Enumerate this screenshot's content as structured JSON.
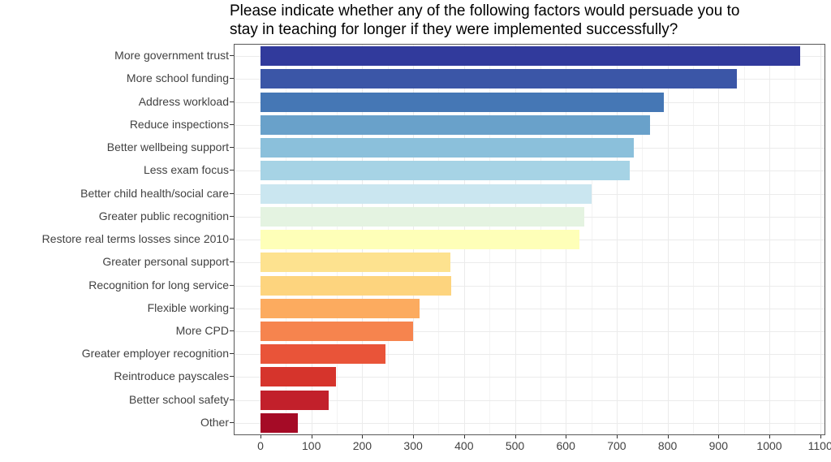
{
  "chart_data": {
    "type": "bar",
    "orientation": "horizontal",
    "title_lines": [
      "Please indicate whether any of the following factors would persuade you to",
      "stay in teaching for longer if they were implemented successfully?"
    ],
    "categories": [
      "More government trust",
      "More school funding",
      "Address workload",
      "Reduce inspections",
      "Better wellbeing support",
      "Less exam focus",
      "Better child health/social care",
      "Greater public recognition",
      "Restore real terms losses since 2010",
      "Greater personal support",
      "Recognition for long service",
      "Flexible working",
      "More CPD",
      "Greater employer recognition",
      "Reintroduce payscales",
      "Better school safety",
      "Other"
    ],
    "values": [
      1061,
      936,
      792,
      765,
      733,
      726,
      651,
      636,
      626,
      373,
      375,
      313,
      299,
      246,
      149,
      134,
      74
    ],
    "bar_colors": [
      "#313a9c",
      "#3b56a7",
      "#4577b5",
      "#69a1ca",
      "#8bc0db",
      "#a6d3e5",
      "#cae6f0",
      "#e4f3e1",
      "#feffb8",
      "#fde28f",
      "#fdd47e",
      "#fcab5f",
      "#f6844e",
      "#e95439",
      "#d6342c",
      "#c2202b",
      "#a50b26"
    ],
    "xlabel": "",
    "ylabel": "",
    "xlim": [
      0,
      1100
    ],
    "x_ticks": [
      0,
      100,
      200,
      300,
      400,
      500,
      600,
      700,
      800,
      900,
      1000,
      1100
    ],
    "x_minor_step": 50,
    "grid": true,
    "legend": false
  },
  "colors": {
    "panel_border": "#595959",
    "grid_major": "#ebebeb",
    "grid_minor": "#f3f3f3",
    "axis_text": "#424242",
    "tick_mark": "#333333",
    "title_text": "#000000",
    "background": "#ffffff"
  }
}
